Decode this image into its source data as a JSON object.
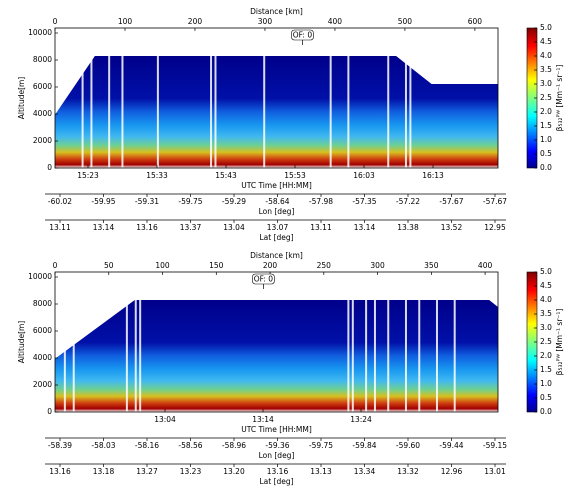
{
  "chart_data": [
    {
      "type": "curtain",
      "annotation": "OF: 0",
      "x_label": "Distance [km]",
      "xlim": [
        0,
        633
      ],
      "xticks": [
        0,
        100,
        200,
        300,
        400,
        500,
        600
      ],
      "y_label": "Altitude[m]",
      "ylim": [
        0,
        10370
      ],
      "yticks": [
        0,
        2000,
        4000,
        6000,
        8000,
        10000
      ],
      "time_label": "UTC Time [HH:MM]",
      "time_ticks": [
        "15:23",
        "15:33",
        "15:43",
        "15:53",
        "16:03",
        "16:13"
      ],
      "lon_label": "Lon [deg]",
      "lon_ticks": [
        "-60.02",
        "-59.95",
        "-59.31",
        "-59.75",
        "-59.29",
        "-58.64",
        "-57.98",
        "-57.35",
        "-57.22",
        "-57.67",
        "-57.67"
      ],
      "lat_label": "Lat [deg]",
      "lat_ticks": [
        "13.11",
        "13.14",
        "13.16",
        "13.37",
        "13.04",
        "13.07",
        "13.11",
        "13.14",
        "13.38",
        "13.52",
        "12.95"
      ],
      "colorbar_label": "β₅₃₂ᴾᵂ [Mm⁻¹ sr⁻¹]",
      "clim": [
        0,
        5
      ],
      "cticks": [
        {
          "value": 0,
          "label": "0.0"
        },
        {
          "value": 0.5,
          "label": "0.5"
        },
        {
          "value": 1,
          "label": "1.0"
        },
        {
          "value": 1.5,
          "label": "1.5"
        },
        {
          "value": 2,
          "label": "2.0"
        },
        {
          "value": 2.5,
          "label": "2.5"
        },
        {
          "value": 3,
          "label": "3.0"
        },
        {
          "value": 3.5,
          "label": "3.5"
        },
        {
          "value": 4,
          "label": "4.0"
        },
        {
          "value": 4.5,
          "label": "4.5"
        },
        {
          "value": 5,
          "label": "5.0"
        }
      ]
    },
    {
      "type": "curtain",
      "annotation": "OF: 0",
      "x_label": "Distance [km]",
      "xlim": [
        0,
        412
      ],
      "xticks": [
        0,
        50,
        100,
        150,
        200,
        250,
        300,
        350,
        400
      ],
      "y_label": "Altitude[m]",
      "ylim": [
        0,
        10370
      ],
      "yticks": [
        0,
        2000,
        4000,
        6000,
        8000,
        10000
      ],
      "time_label": "UTC Time [HH:MM]",
      "time_ticks": [
        "13:04",
        "13:14",
        "13:24"
      ],
      "lon_label": "Lon [deg]",
      "lon_ticks": [
        "-58.39",
        "-58.03",
        "-58.16",
        "-58.56",
        "-58.96",
        "-59.36",
        "-59.75",
        "-59.84",
        "-59.60",
        "-59.44",
        "-59.15"
      ],
      "lat_label": "Lat [deg]",
      "lat_ticks": [
        "13.16",
        "13.18",
        "13.27",
        "13.23",
        "13.20",
        "13.16",
        "13.13",
        "13.34",
        "13.32",
        "12.96",
        "13.01"
      ],
      "colorbar_label": "β₅₃₂ᴾᵂ [Mm⁻¹ sr⁻¹]",
      "clim": [
        0,
        5
      ],
      "cticks": [
        {
          "value": 0,
          "label": "0.0"
        },
        {
          "value": 0.5,
          "label": "0.5"
        },
        {
          "value": 1,
          "label": "1.0"
        },
        {
          "value": 1.5,
          "label": "1.5"
        },
        {
          "value": 2,
          "label": "2.0"
        },
        {
          "value": 2.5,
          "label": "2.5"
        },
        {
          "value": 3,
          "label": "3.0"
        },
        {
          "value": 3.5,
          "label": "3.5"
        },
        {
          "value": 4,
          "label": "4.0"
        },
        {
          "value": 4.5,
          "label": "4.5"
        },
        {
          "value": 5,
          "label": "5.0"
        }
      ]
    }
  ]
}
